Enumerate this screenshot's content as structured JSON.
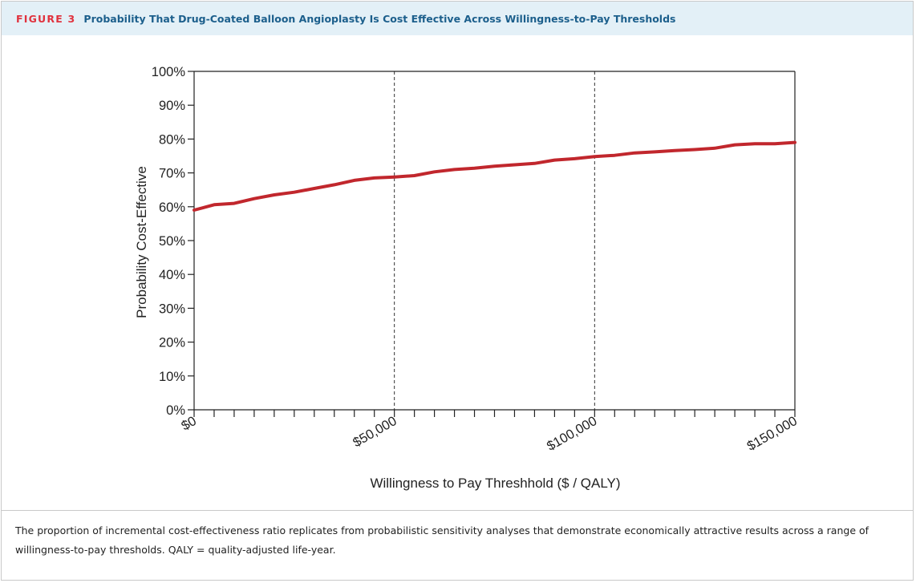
{
  "figure": {
    "label": "FIGURE 3",
    "title": "Probability That Drug-Coated Balloon Angioplasty Is Cost Effective Across Willingness-to-Pay Thresholds",
    "caption": "The proportion of incremental cost-effectiveness ratio replicates from probabilistic sensitivity analyses that demonstrate economically attractive results across a range of willingness-to-pay thresholds. QALY = quality-adjusted life-year."
  },
  "colors": {
    "header_bg": "#e3f0f7",
    "label": "#e0323e",
    "title": "#1c5f8c",
    "series": "#c1272d"
  },
  "chart_data": {
    "type": "line",
    "xlabel": "Willingness to Pay Threshhold ($ / QALY)",
    "ylabel": "Probability Cost-Effective",
    "xlim": [
      0,
      150000
    ],
    "ylim": [
      0,
      100
    ],
    "x_tick_labels": [
      {
        "value": 0,
        "label": "$0"
      },
      {
        "value": 50000,
        "label": "$50,000"
      },
      {
        "value": 100000,
        "label": "$100,000"
      },
      {
        "value": 150000,
        "label": "$150,000"
      }
    ],
    "x_minor_ticks": [
      0,
      5000,
      10000,
      15000,
      20000,
      25000,
      30000,
      35000,
      40000,
      45000,
      50000,
      55000,
      60000,
      65000,
      70000,
      75000,
      80000,
      85000,
      90000,
      95000,
      100000,
      105000,
      110000,
      115000,
      120000,
      125000,
      130000,
      135000,
      140000,
      145000,
      150000
    ],
    "y_ticks": [
      {
        "value": 0,
        "label": "0%"
      },
      {
        "value": 10,
        "label": "10%"
      },
      {
        "value": 20,
        "label": "20%"
      },
      {
        "value": 30,
        "label": "30%"
      },
      {
        "value": 40,
        "label": "40%"
      },
      {
        "value": 50,
        "label": "50%"
      },
      {
        "value": 60,
        "label": "60%"
      },
      {
        "value": 70,
        "label": "70%"
      },
      {
        "value": 80,
        "label": "80%"
      },
      {
        "value": 90,
        "label": "90%"
      },
      {
        "value": 100,
        "label": "100%"
      }
    ],
    "reference_lines_x": [
      50000,
      100000
    ],
    "grid": false,
    "series": [
      {
        "x": [
          0,
          5000,
          10000,
          15000,
          20000,
          25000,
          30000,
          35000,
          40000,
          45000,
          50000,
          55000,
          60000,
          65000,
          70000,
          75000,
          80000,
          85000,
          90000,
          95000,
          100000,
          105000,
          110000,
          115000,
          120000,
          125000,
          130000,
          135000,
          140000,
          145000,
          150000
        ],
        "values": [
          59,
          60.6,
          61,
          62.4,
          63.5,
          64.3,
          65.4,
          66.5,
          67.8,
          68.5,
          68.8,
          69.2,
          70.3,
          71,
          71.4,
          72,
          72.4,
          72.8,
          73.8,
          74.2,
          74.8,
          75.2,
          75.9,
          76.2,
          76.6,
          76.9,
          77.3,
          78.3,
          78.6,
          78.6,
          79
        ]
      }
    ]
  }
}
